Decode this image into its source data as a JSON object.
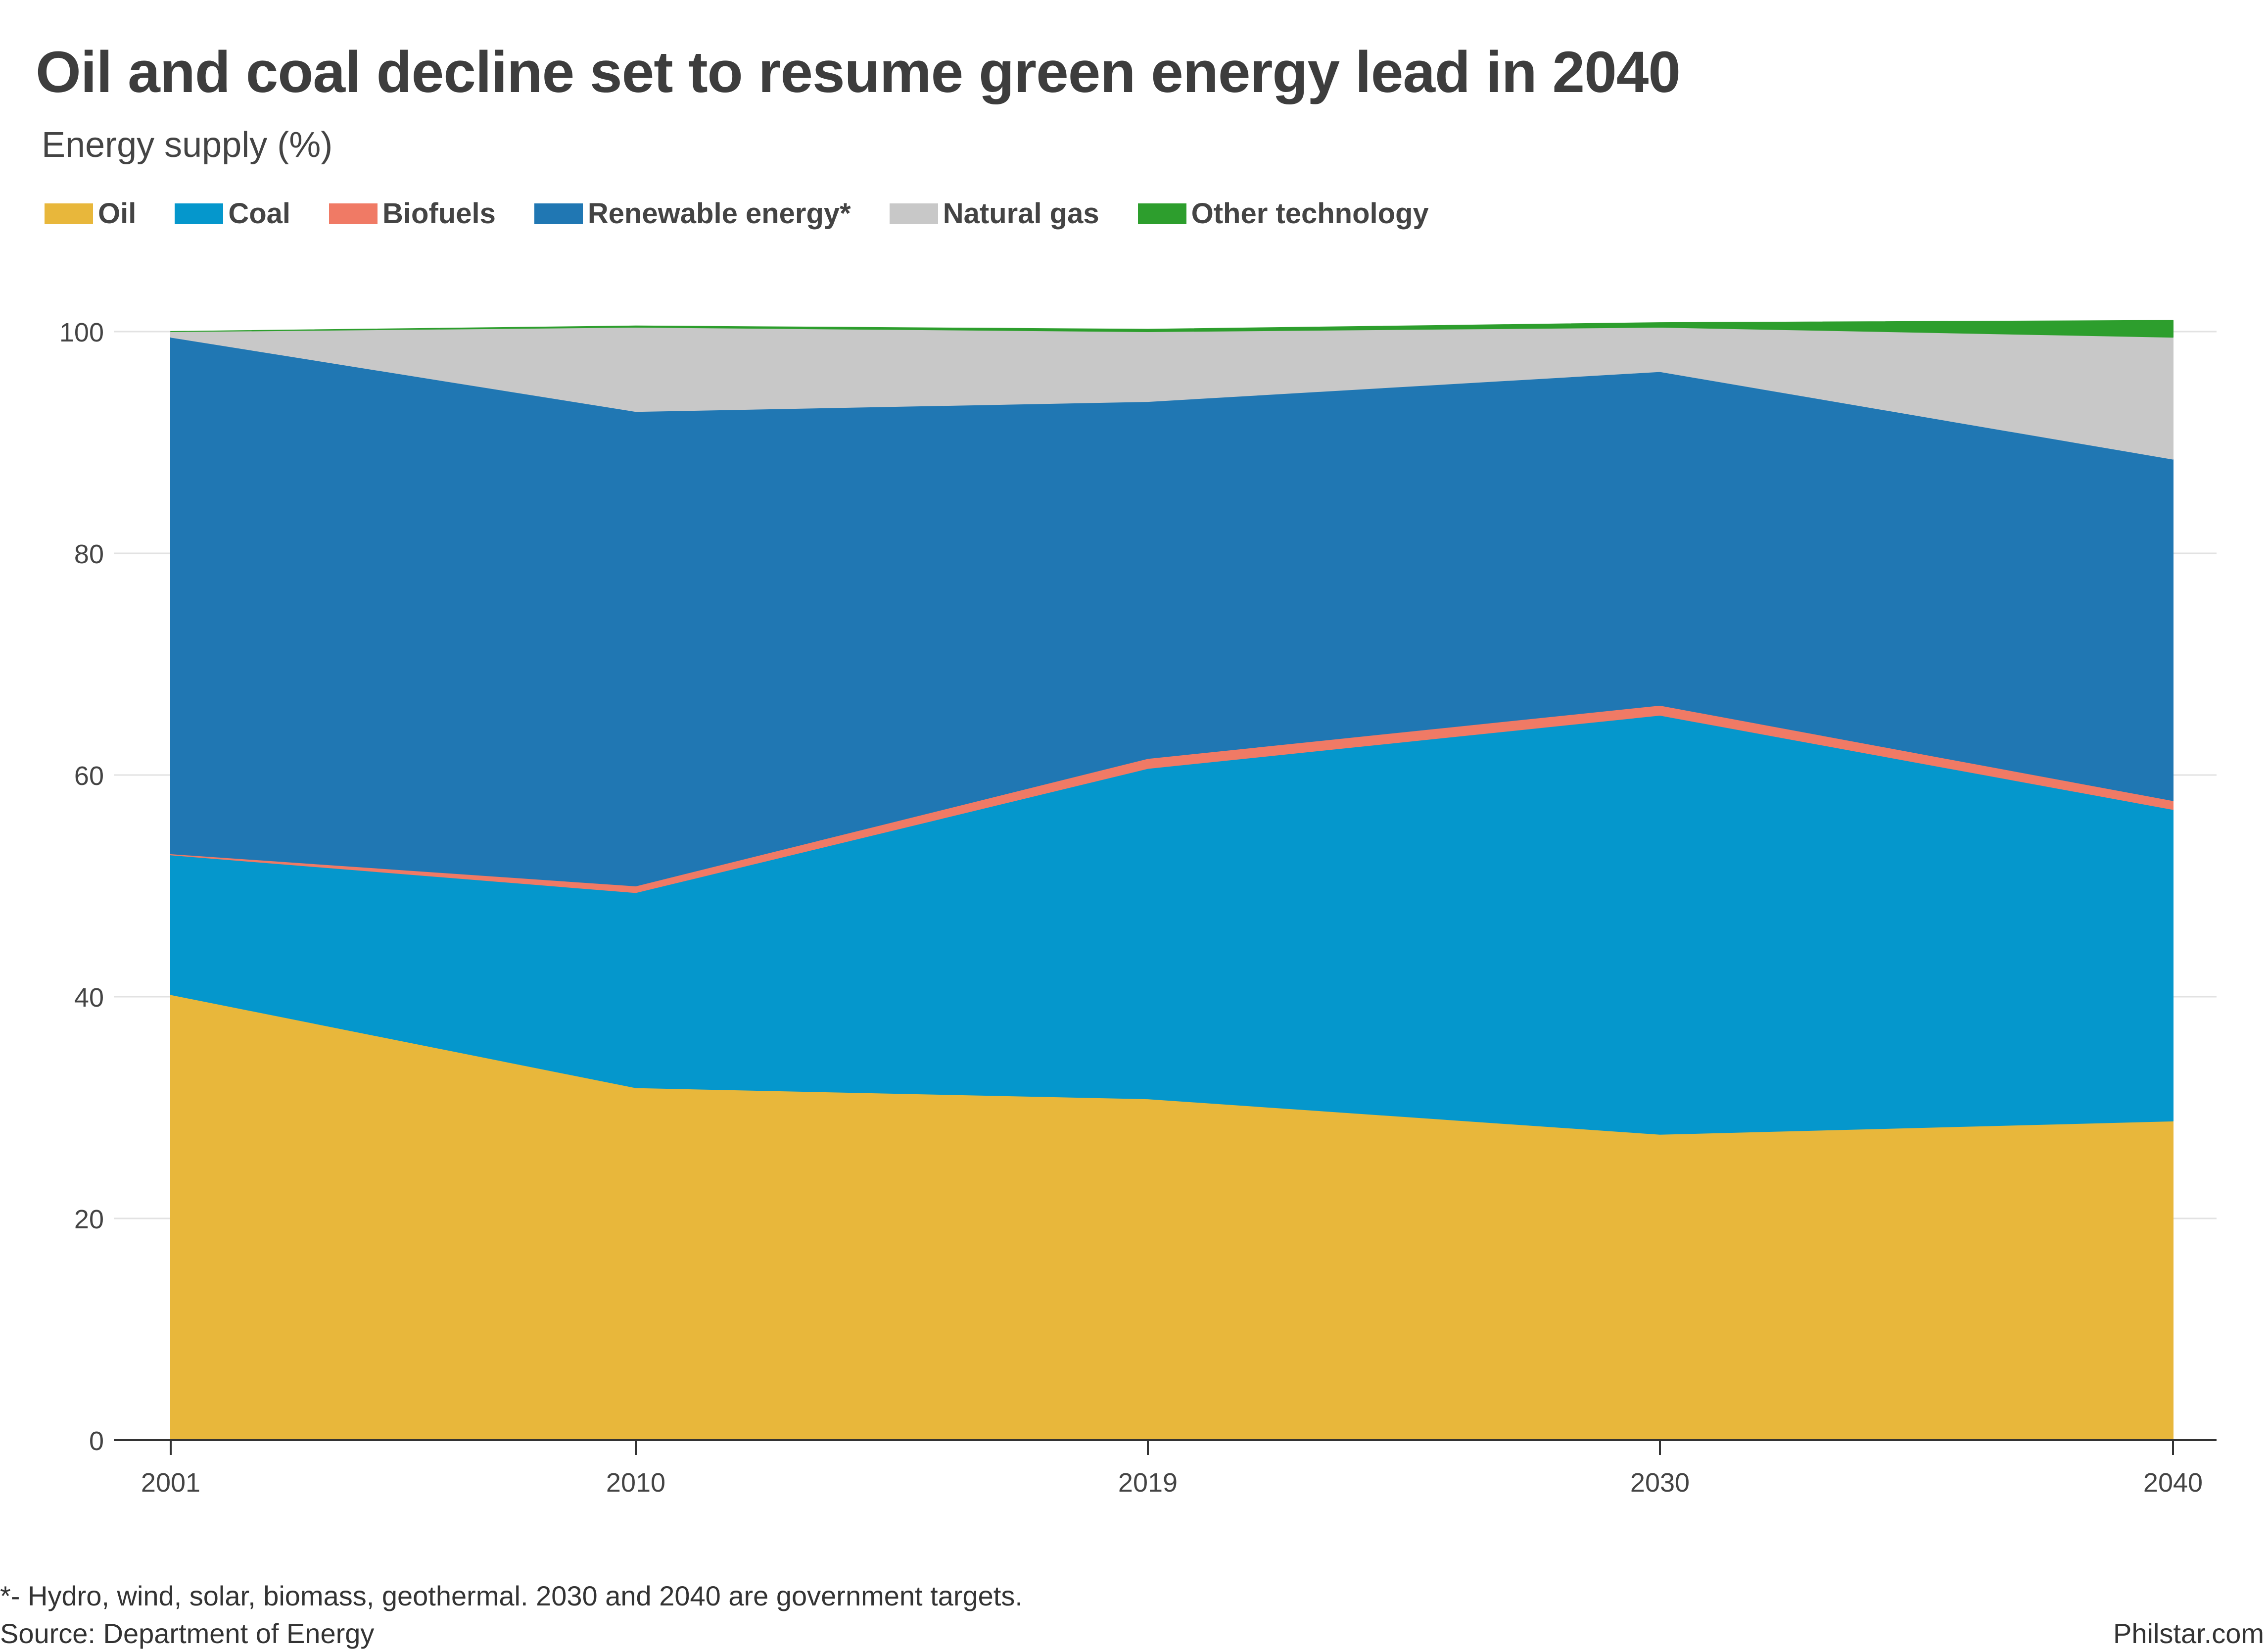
{
  "title": "Oil and coal decline set to resume green energy lead in 2040",
  "subtitle": "Energy supply (%)",
  "legend": [
    {
      "label": "Oil",
      "color": "#E8B73B"
    },
    {
      "label": "Coal",
      "color": "#0597CC"
    },
    {
      "label": "Biofuels",
      "color": "#F07A65"
    },
    {
      "label": "Renewable energy*",
      "color": "#2077B3"
    },
    {
      "label": "Natural gas",
      "color": "#C8C8C8"
    },
    {
      "label": "Other technology",
      "color": "#2D9E2D"
    }
  ],
  "footnote": "*- Hydro, wind, solar, biomass, geothermal. 2030 and 2040 are government targets.",
  "source": "Source: Department of Energy",
  "credit": "Philstar.com",
  "chart_data": {
    "type": "area",
    "stacked": true,
    "x": [
      "2001",
      "2010",
      "2019",
      "2030",
      "2040"
    ],
    "series": [
      {
        "name": "Oil",
        "color": "#E8B73B",
        "values": [
          40.2,
          31.8,
          30.8,
          27.6,
          28.8
        ]
      },
      {
        "name": "Coal",
        "color": "#0597CC",
        "values": [
          12.6,
          17.6,
          29.8,
          37.8,
          28.1
        ]
      },
      {
        "name": "Biofuels",
        "color": "#F07A65",
        "values": [
          0.1,
          0.6,
          0.9,
          0.9,
          0.8
        ]
      },
      {
        "name": "Renewable energy*",
        "color": "#2077B3",
        "values": [
          46.6,
          42.8,
          32.2,
          30.1,
          30.8
        ]
      },
      {
        "name": "Natural gas",
        "color": "#C8C8C8",
        "values": [
          0.5,
          7.6,
          6.3,
          4.0,
          11.0
        ]
      },
      {
        "name": "Other technology",
        "color": "#2D9E2D",
        "values": [
          0.0,
          0.1,
          0.2,
          0.4,
          1.5
        ]
      }
    ],
    "ylim": [
      0,
      101
    ],
    "yticks": [
      0,
      20,
      40,
      60,
      80,
      100
    ],
    "grid": true,
    "legend_position": "top-left"
  }
}
